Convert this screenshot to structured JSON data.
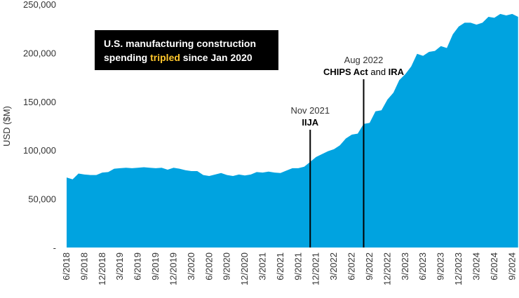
{
  "chart_data": {
    "type": "area",
    "title": {
      "line1": "U.S. manufacturing construction",
      "line2": [
        "spending ",
        "tripled",
        " since Jan 2020"
      ]
    },
    "ylabel": "USD ($M)",
    "color": "#00a3e0",
    "highlight_color": "#ffc72c",
    "categories": [
      "6/2018",
      null,
      null,
      "9/2018",
      null,
      null,
      "12/2018",
      null,
      null,
      "3/2019",
      null,
      null,
      "6/2019",
      null,
      null,
      "9/2019",
      null,
      null,
      "12/2019",
      null,
      null,
      "3/2020",
      null,
      null,
      "6/2020",
      null,
      null,
      "9/2020",
      null,
      null,
      "12/2020",
      null,
      null,
      "3/2021",
      null,
      null,
      "6/2021",
      null,
      null,
      "9/2021",
      null,
      null,
      "12/2021",
      null,
      null,
      "3/2022",
      null,
      null,
      "6/2022",
      null,
      null,
      "9/2022",
      null,
      null,
      "12/2022",
      null,
      null,
      "3/2023",
      null,
      null,
      "6/2023",
      null,
      null,
      "9/2023",
      null,
      null,
      "12/2023",
      null,
      null,
      "3/2024",
      null,
      null,
      "6/2024",
      null,
      null,
      "9/2024",
      null
    ],
    "values": [
      72000,
      70000,
      76000,
      75000,
      74500,
      74500,
      77000,
      77500,
      81000,
      81500,
      82000,
      81500,
      82000,
      82500,
      82000,
      81500,
      82000,
      80000,
      82000,
      81000,
      79500,
      78500,
      78500,
      74500,
      73500,
      75000,
      76500,
      74500,
      73500,
      75000,
      74000,
      75000,
      77500,
      77000,
      78000,
      77000,
      76500,
      79000,
      81500,
      81500,
      83000,
      88000,
      93000,
      96000,
      99000,
      101000,
      105000,
      112000,
      116000,
      117000,
      127000,
      128000,
      140000,
      141000,
      152000,
      159000,
      172000,
      178000,
      186000,
      199000,
      197000,
      201000,
      202000,
      207000,
      205000,
      219000,
      227000,
      231000,
      231000,
      229000,
      231000,
      237000,
      236000,
      240000,
      238500,
      240000,
      237000
    ],
    "ylim": [
      0,
      250000
    ],
    "yticks": [
      {
        "value": 0,
        "label": "-"
      },
      {
        "value": 50000,
        "label": "50,000"
      },
      {
        "value": 100000,
        "label": "100,000"
      },
      {
        "value": 150000,
        "label": "150,000"
      },
      {
        "value": 200000,
        "label": "200,000"
      },
      {
        "value": 250000,
        "label": "250,000"
      }
    ],
    "annotations": [
      {
        "date": "Nov 2021",
        "text": [
          "IIJA"
        ]
      },
      {
        "date": "Aug 2022",
        "text": [
          "CHIPS Act",
          " and ",
          "IRA"
        ]
      }
    ]
  }
}
